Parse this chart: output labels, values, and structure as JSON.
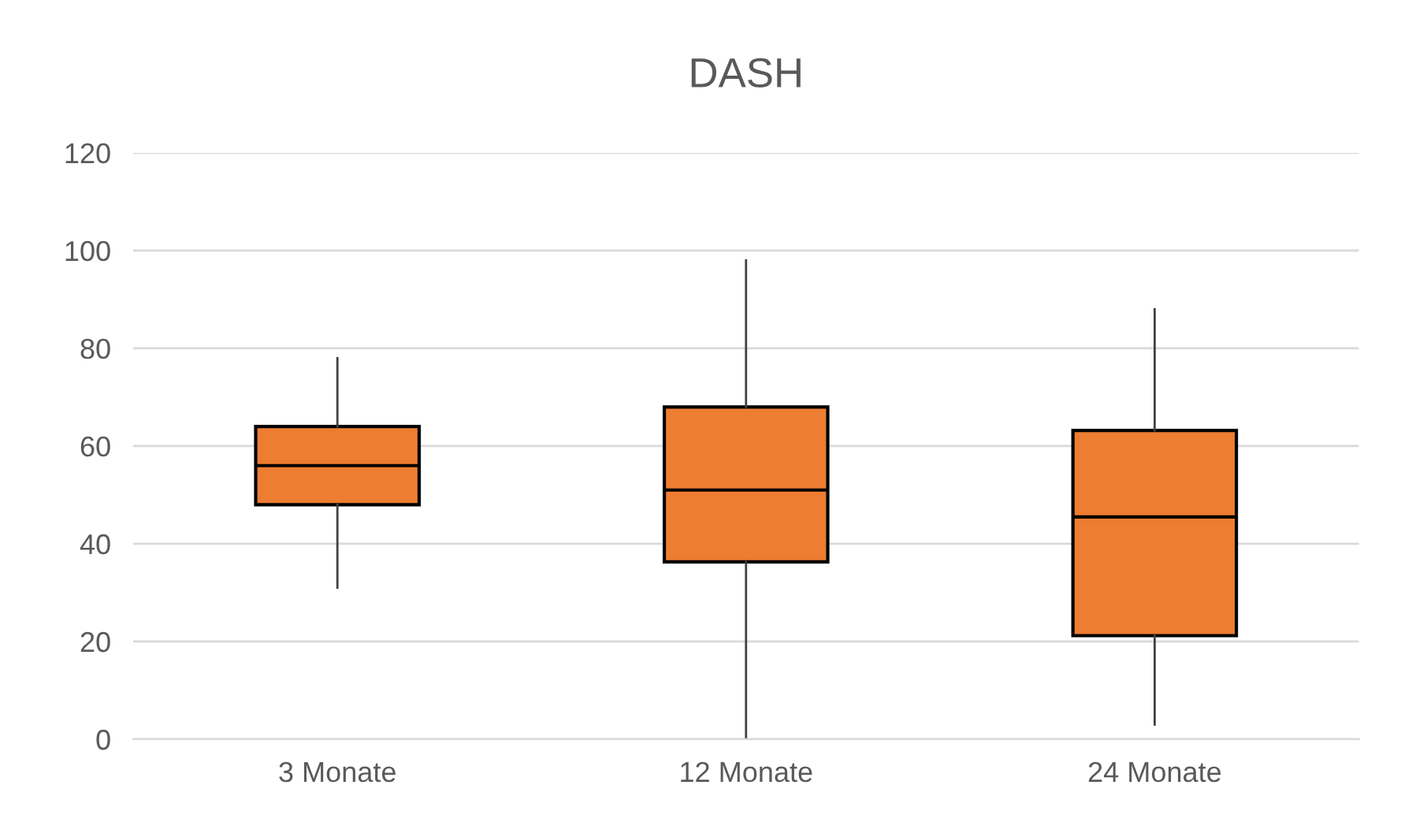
{
  "chart_data": {
    "type": "box",
    "title": "DASH",
    "categories": [
      "3 Monate",
      "12 Monate",
      "24 Monate"
    ],
    "boxes": [
      {
        "low": 31,
        "q1": 48,
        "median": 56,
        "q3": 64,
        "high": 78
      },
      {
        "low": 0.4,
        "q1": 36.3,
        "median": 51,
        "q3": 68,
        "high": 98
      },
      {
        "low": 3,
        "q1": 21.2,
        "median": 45.5,
        "q3": 63.2,
        "high": 88
      }
    ],
    "color": "#ed7d31",
    "ylim": [
      0,
      120
    ],
    "yticks": [
      0,
      20,
      40,
      60,
      80,
      100,
      120
    ],
    "grid": "y",
    "legend": false
  }
}
